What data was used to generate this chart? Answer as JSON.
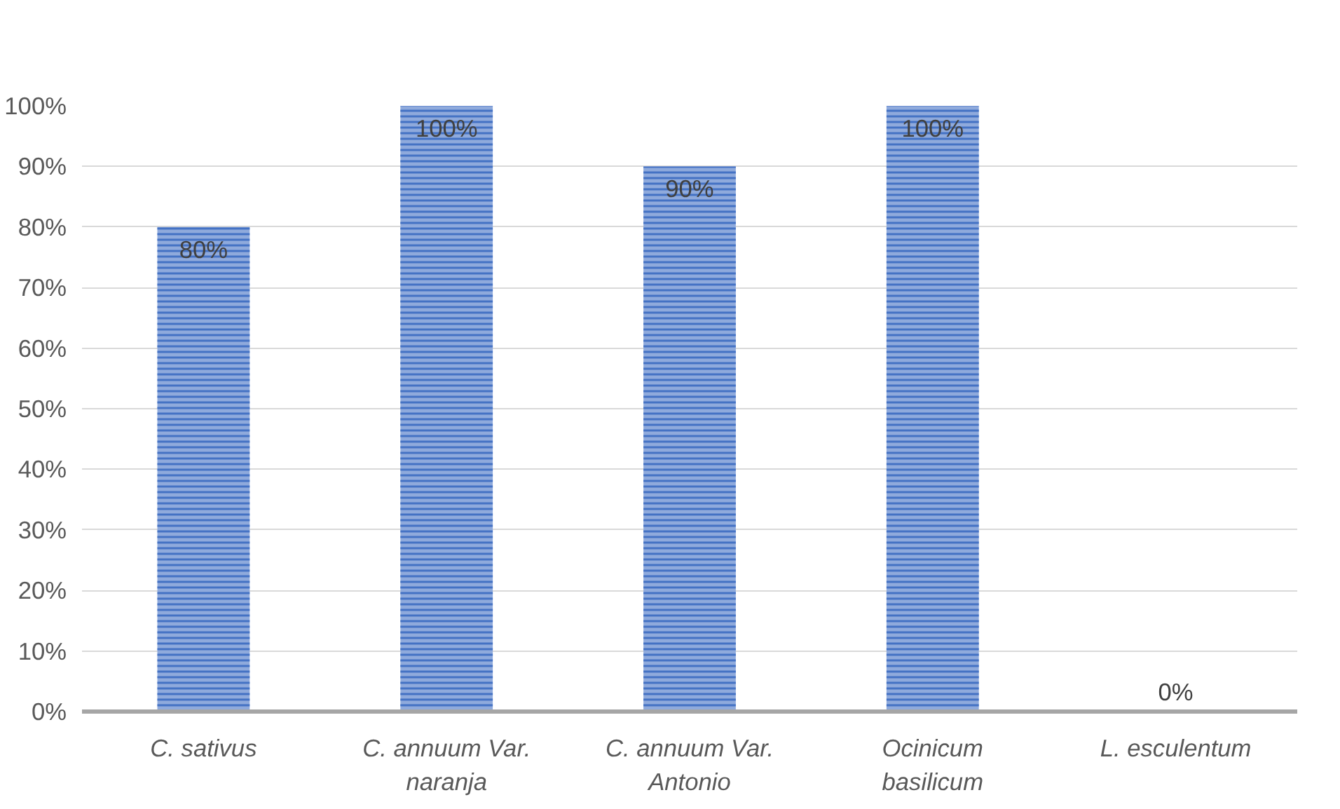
{
  "chart_data": {
    "type": "bar",
    "categories": [
      "C. sativus",
      "C. annuum Var. naranja",
      "C. annuum Var. Antonio",
      "Ocinicum basilicum",
      "L. esculentum"
    ],
    "values": [
      80,
      100,
      90,
      100,
      0
    ],
    "value_labels": [
      "80%",
      "100%",
      "90%",
      "100%",
      "0%"
    ],
    "color": "#4472c4",
    "ylim": [
      0,
      100
    ],
    "yticks": [
      {
        "value": 0,
        "label": "0%"
      },
      {
        "value": 10,
        "label": "10%"
      },
      {
        "value": 20,
        "label": "20%"
      },
      {
        "value": 30,
        "label": "30%"
      },
      {
        "value": 40,
        "label": "40%"
      },
      {
        "value": 50,
        "label": "50%"
      },
      {
        "value": 60,
        "label": "60%"
      },
      {
        "value": 70,
        "label": "70%"
      },
      {
        "value": 80,
        "label": "80%"
      },
      {
        "value": 90,
        "label": "90%"
      },
      {
        "value": 100,
        "label": "100%"
      }
    ],
    "grid": "y"
  }
}
